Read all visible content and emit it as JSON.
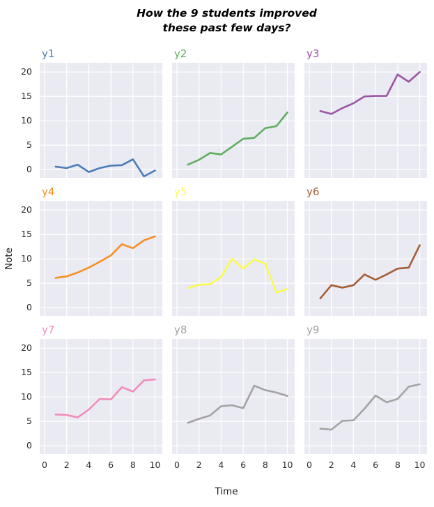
{
  "title": {
    "line1": "How the 9 students improved",
    "line2": "these past few days?"
  },
  "axes": {
    "xlabel": "Time",
    "ylabel": "Note",
    "xticks": [
      0,
      2,
      4,
      6,
      8,
      10
    ],
    "yticks": [
      0,
      5,
      10,
      15,
      20
    ]
  },
  "style": {
    "plot_bg": "#eaeaf2",
    "grid_color": "#ffffff",
    "figure_bg": "#ffffff",
    "tick_color": "#2b2b2b"
  },
  "chart_data": {
    "type": "line",
    "title": "How the 9 students improved these past few days?",
    "xlabel": "Time",
    "ylabel": "Note",
    "layout": "3x3 small multiples, shared x and y axes, grid on, no legend",
    "x": [
      1,
      2,
      3,
      4,
      5,
      6,
      7,
      8,
      9,
      10
    ],
    "xlim": [
      -0.44,
      10.66
    ],
    "ylim": [
      -1.7,
      21.9
    ],
    "xticks": [
      0,
      2,
      4,
      6,
      8,
      10
    ],
    "yticks": [
      0,
      5,
      10,
      15,
      20
    ],
    "series": [
      {
        "name": "y1",
        "color": "#4a7cb5",
        "values": [
          0.6,
          0.3,
          1.0,
          -0.5,
          0.3,
          0.8,
          0.9,
          2.1,
          -1.4,
          -0.2
        ]
      },
      {
        "name": "y2",
        "color": "#5fae5f",
        "values": [
          1.0,
          2.0,
          3.4,
          3.1,
          4.7,
          6.3,
          6.5,
          8.5,
          8.9,
          11.7
        ]
      },
      {
        "name": "y3",
        "color": "#9b55a5",
        "values": [
          12.0,
          11.4,
          12.6,
          13.6,
          15.0,
          15.1,
          15.1,
          19.5,
          18.0,
          20.0
        ]
      },
      {
        "name": "y4",
        "color": "#f79021",
        "values": [
          6.1,
          6.4,
          7.2,
          8.2,
          9.4,
          10.7,
          13.0,
          12.2,
          13.8,
          14.6
        ]
      },
      {
        "name": "y5",
        "color": "#fbfb4d",
        "values": [
          4.0,
          4.7,
          4.8,
          6.3,
          10.0,
          8.0,
          9.9,
          9.0,
          3.1,
          3.8
        ]
      },
      {
        "name": "y6",
        "color": "#a65e38",
        "values": [
          1.9,
          4.6,
          4.1,
          4.6,
          6.8,
          5.7,
          6.8,
          8.0,
          8.2,
          12.8
        ]
      },
      {
        "name": "y7",
        "color": "#f28cbb",
        "values": [
          6.4,
          6.3,
          5.8,
          7.4,
          9.6,
          9.5,
          12.0,
          11.1,
          13.4,
          13.6
        ]
      },
      {
        "name": "y8",
        "color": "#a3a3a3",
        "values": [
          4.7,
          5.5,
          6.2,
          8.1,
          8.3,
          7.7,
          12.3,
          11.4,
          10.9,
          10.2
        ]
      },
      {
        "name": "y9",
        "color": "#a3a3a3",
        "values": [
          3.5,
          3.3,
          5.1,
          5.2,
          7.6,
          10.3,
          8.9,
          9.6,
          12.1,
          12.6
        ]
      }
    ]
  }
}
